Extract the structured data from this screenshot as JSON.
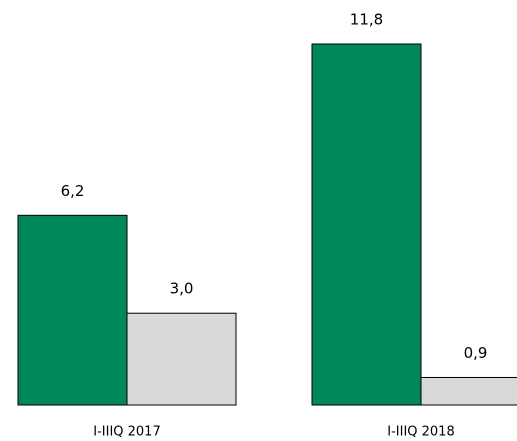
{
  "chart_data": {
    "type": "bar",
    "categories": [
      "I-IIIQ 2017",
      "I-IIIQ 2018"
    ],
    "series": [
      {
        "color": "#00885a",
        "values": [
          6.2,
          11.8
        ],
        "value_labels": [
          "6,2",
          "11,8"
        ]
      },
      {
        "color": "#d9d9d9",
        "values": [
          3.0,
          0.9
        ],
        "value_labels": [
          "3,0",
          "0,9"
        ]
      }
    ]
  }
}
